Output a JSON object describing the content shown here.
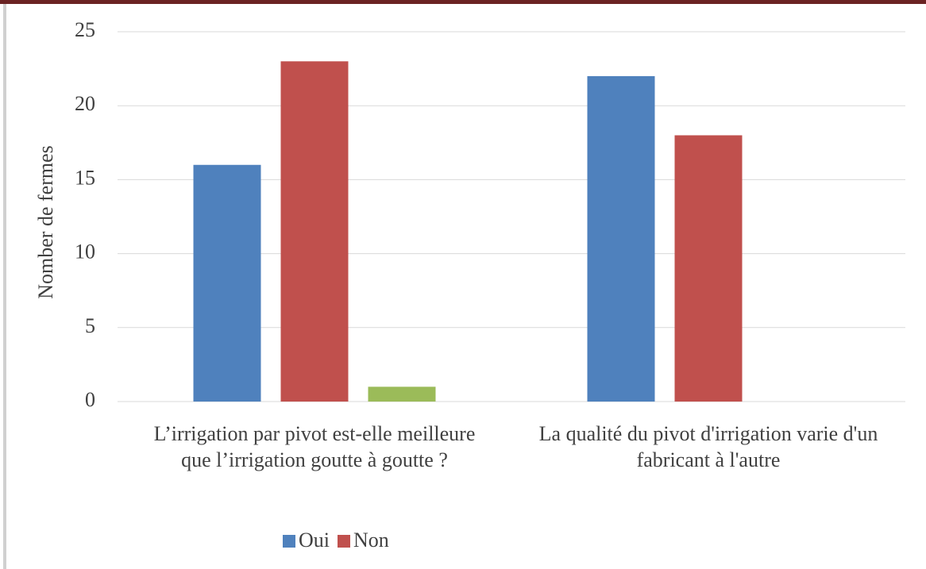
{
  "chart_data": {
    "type": "bar",
    "categories": [
      "L’irrigation par pivot est-elle meilleure que l’irrigation goutte à goutte ?",
      "La qualité du pivot d'irrigation varie d'un fabricant à l'autre"
    ],
    "series": [
      {
        "name": "Oui",
        "color": "#4f81bd",
        "values": [
          16,
          22
        ]
      },
      {
        "name": "Non",
        "color": "#c0504d",
        "values": [
          23,
          18
        ]
      },
      {
        "color": "#9bbb59",
        "values": [
          1,
          null
        ]
      }
    ],
    "y_label": "Nomber de fermes",
    "ylim": [
      0,
      25
    ],
    "yticks": [
      0,
      5,
      10,
      15,
      20,
      25
    ],
    "grid": true,
    "legend": "bottom"
  }
}
